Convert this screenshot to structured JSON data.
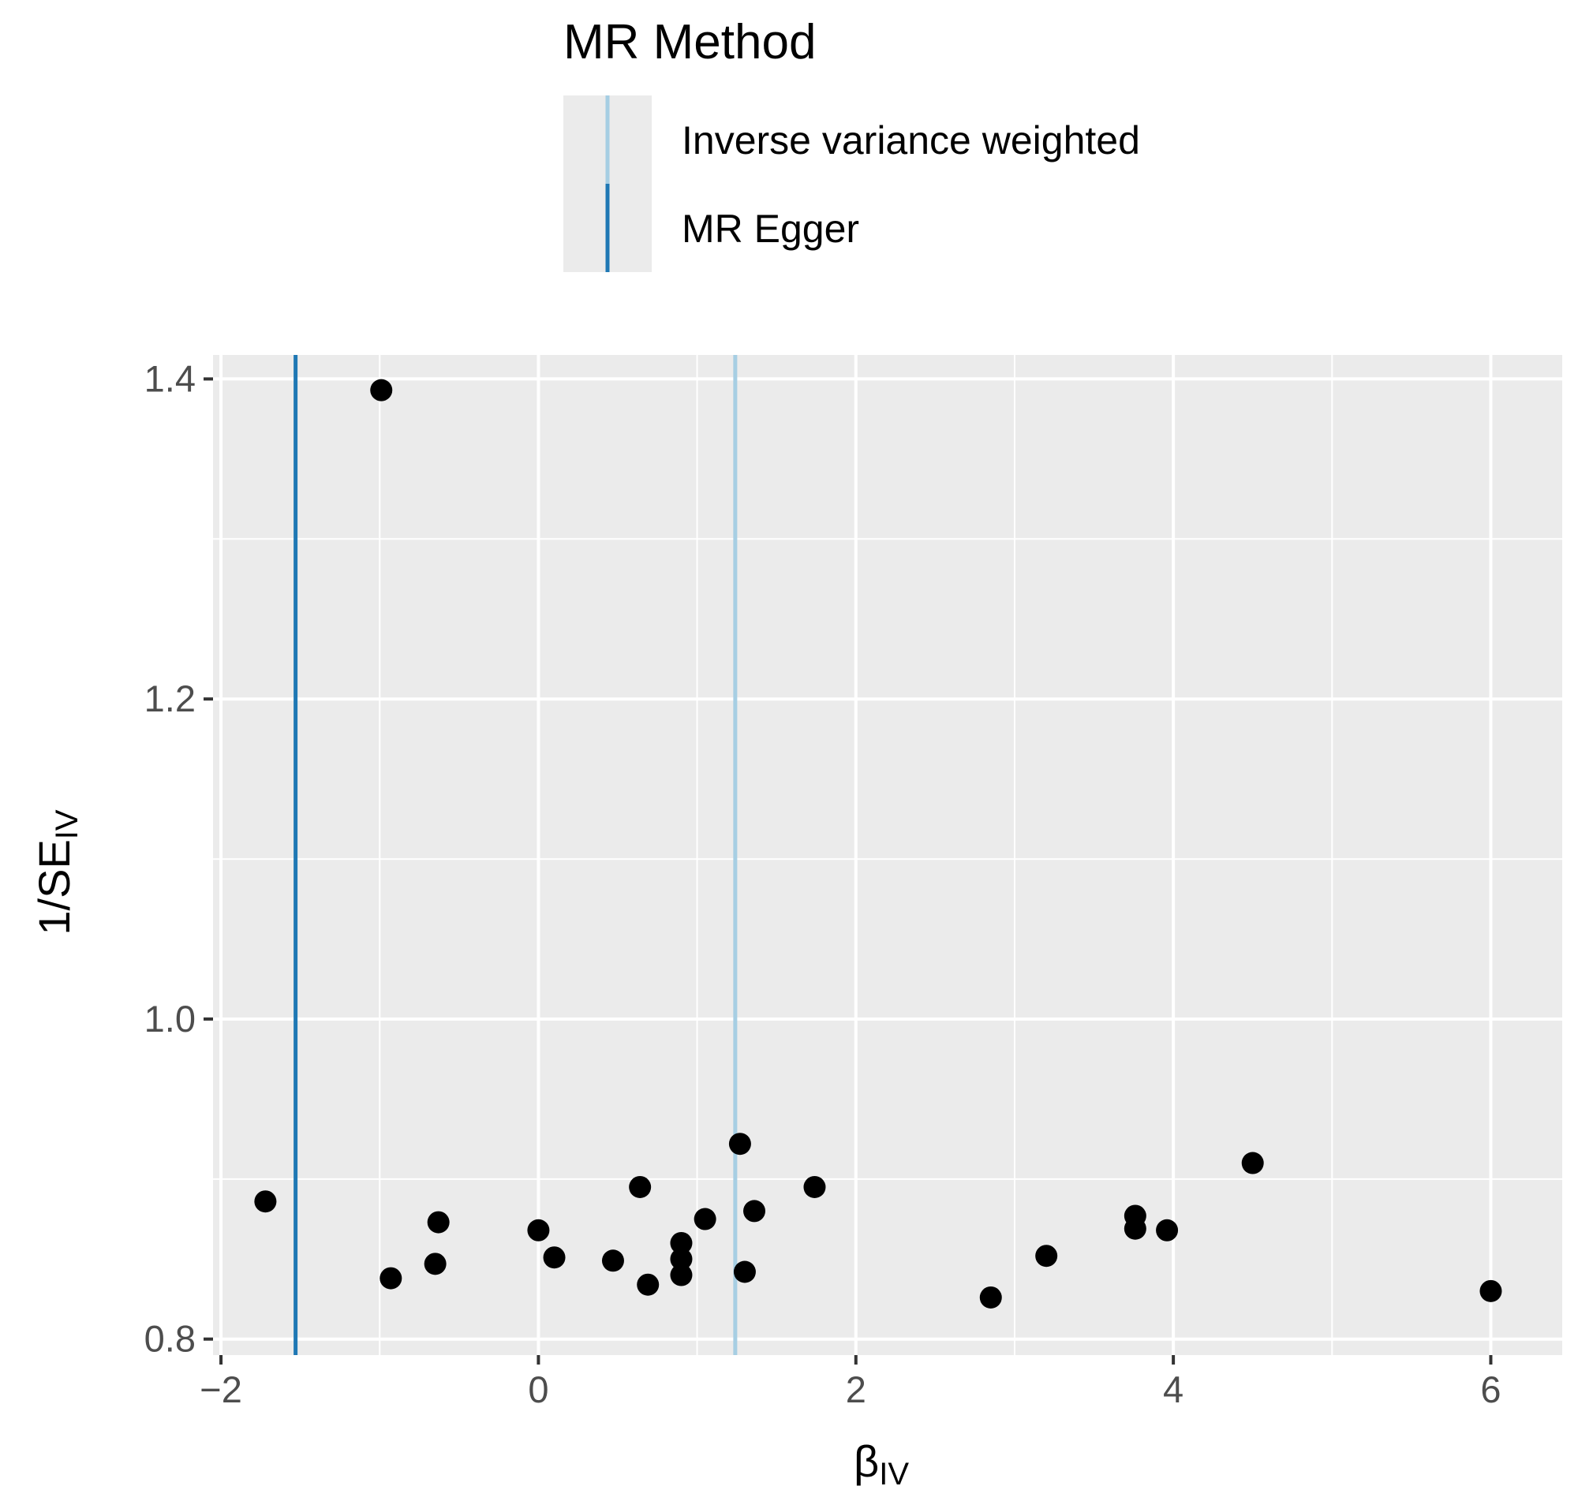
{
  "chart_data": {
    "type": "scatter",
    "xlabel": "β",
    "xlabel_sub": "IV",
    "ylabel": "1/SE",
    "ylabel_sub": "IV",
    "xlim": [
      -2.05,
      6.45
    ],
    "ylim": [
      0.79,
      1.415
    ],
    "x_ticks": [
      -2,
      0,
      2,
      4,
      6
    ],
    "x_tick_labels": [
      "−2",
      "0",
      "2",
      "4",
      "6"
    ],
    "y_ticks": [
      0.8,
      1.0,
      1.2,
      1.4
    ],
    "y_tick_labels": [
      "0.8",
      "1.0",
      "1.2",
      "1.4"
    ],
    "grid": true,
    "panel_background": "#ebebeb",
    "point_color": "#000000",
    "legend": {
      "title": "MR Method",
      "position": "top",
      "entries": [
        {
          "label": "Inverse variance weighted",
          "color": "#a6cee3"
        },
        {
          "label": "MR Egger",
          "color": "#1f78b4"
        }
      ]
    },
    "vlines": [
      {
        "method": "MR Egger",
        "x": -1.53,
        "color": "#1f78b4"
      },
      {
        "method": "Inverse variance weighted",
        "x": 1.24,
        "color": "#a6cee3"
      }
    ],
    "points": [
      {
        "x": -0.99,
        "y": 1.393
      },
      {
        "x": -1.72,
        "y": 0.886
      },
      {
        "x": -0.93,
        "y": 0.838
      },
      {
        "x": -0.63,
        "y": 0.873
      },
      {
        "x": -0.65,
        "y": 0.847
      },
      {
        "x": 0.0,
        "y": 0.868
      },
      {
        "x": 0.1,
        "y": 0.851
      },
      {
        "x": 0.47,
        "y": 0.849
      },
      {
        "x": 0.64,
        "y": 0.895
      },
      {
        "x": 0.69,
        "y": 0.834
      },
      {
        "x": 0.9,
        "y": 0.86
      },
      {
        "x": 0.9,
        "y": 0.85
      },
      {
        "x": 0.9,
        "y": 0.84
      },
      {
        "x": 1.05,
        "y": 0.875
      },
      {
        "x": 1.27,
        "y": 0.922
      },
      {
        "x": 1.3,
        "y": 0.842
      },
      {
        "x": 1.36,
        "y": 0.88
      },
      {
        "x": 1.74,
        "y": 0.895
      },
      {
        "x": 2.85,
        "y": 0.826
      },
      {
        "x": 3.2,
        "y": 0.852
      },
      {
        "x": 3.76,
        "y": 0.877
      },
      {
        "x": 3.76,
        "y": 0.869
      },
      {
        "x": 3.96,
        "y": 0.868
      },
      {
        "x": 4.5,
        "y": 0.91
      },
      {
        "x": 6.0,
        "y": 0.83
      }
    ]
  }
}
